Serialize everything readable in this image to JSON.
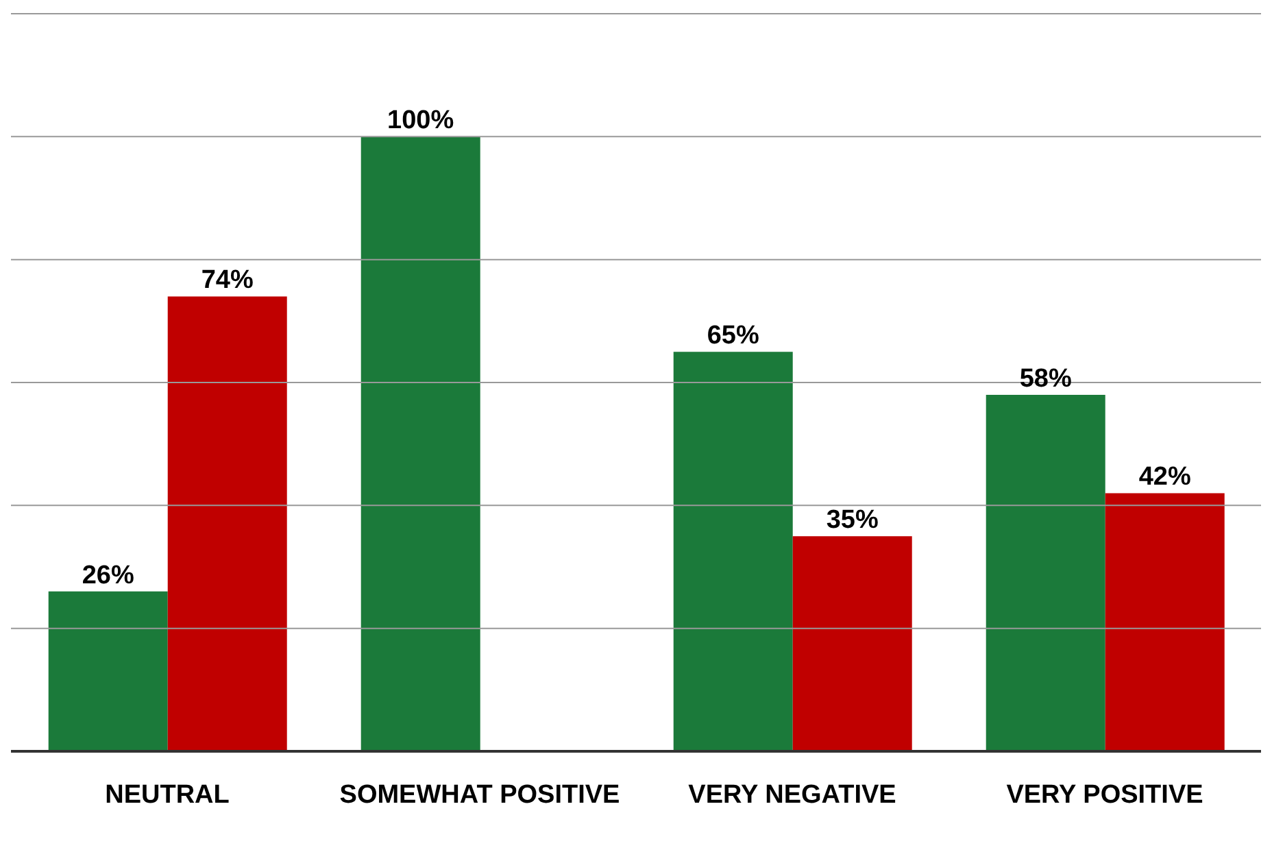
{
  "chart_data": {
    "type": "bar",
    "categories": [
      "NEUTRAL",
      "SOMEWHAT POSITIVE",
      "VERY NEGATIVE",
      "VERY POSITIVE"
    ],
    "series": [
      {
        "color": "#1b7a3a",
        "values": [
          26,
          100,
          65,
          58
        ],
        "value_labels": [
          "26%",
          "100%",
          "65%",
          "58%"
        ]
      },
      {
        "color": "#c00000",
        "values": [
          74,
          null,
          35,
          42
        ],
        "value_labels": [
          "74%",
          null,
          "35%",
          "42%"
        ]
      }
    ],
    "ylim": [
      0,
      120
    ],
    "yticks": [
      {
        "value": 0,
        "label": null
      },
      {
        "value": 20,
        "label": null
      },
      {
        "value": 40,
        "label": null
      },
      {
        "value": 60,
        "label": null
      },
      {
        "value": 80,
        "label": null
      },
      {
        "value": 100,
        "label": null
      },
      {
        "value": 120,
        "label": null
      }
    ],
    "grid": "y",
    "tick_labels": "x"
  }
}
